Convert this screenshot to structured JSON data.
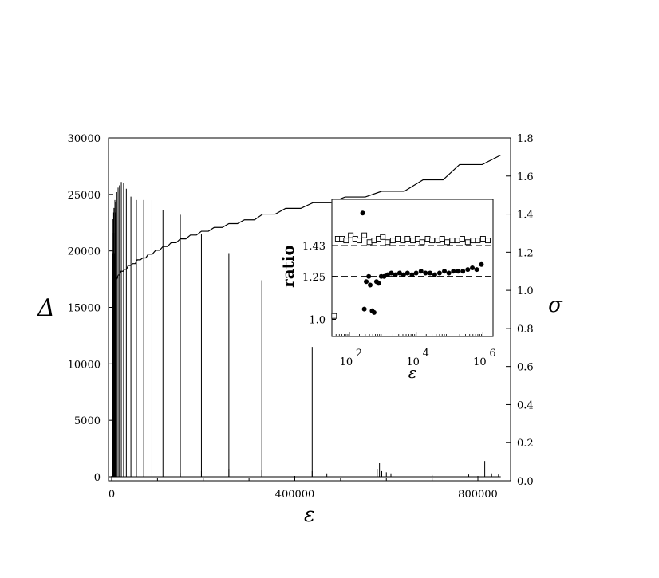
{
  "chart_data": [
    {
      "type": "line",
      "xlabel": "ε",
      "ylabel": "Δ",
      "y2label": "σ",
      "xlim": [
        0,
        900000
      ],
      "ylim": [
        0,
        30000
      ],
      "y2lim": [
        0,
        1.8
      ],
      "x_ticks": [
        0,
        400000,
        800000
      ],
      "x_tick_labels": [
        "0",
        "400000",
        "800000"
      ],
      "y_ticks": [
        0,
        5000,
        10000,
        15000,
        20000,
        25000,
        30000
      ],
      "y_tick_labels": [
        "0",
        "5000",
        "10000",
        "15000",
        "20000",
        "25000",
        "30000"
      ],
      "y2_ticks": [
        0,
        0.2,
        0.4,
        0.6,
        0.8,
        1.0,
        1.2,
        1.4,
        1.6,
        1.8
      ],
      "y2_tick_labels": [
        "0.0",
        "0.2",
        "0.4",
        "0.6",
        "0.8",
        "1.0",
        "1.2",
        "1.4",
        "1.6",
        "1.8"
      ],
      "grid": false,
      "series": [
        {
          "axis": "left",
          "style": "spikes",
          "x": [
            3000,
            5000,
            7000,
            9000,
            11000,
            14000,
            17000,
            21000,
            26000,
            32000,
            42000,
            54000,
            70000,
            88000,
            112000,
            150000,
            196000,
            256000,
            328000,
            438000,
            585000,
            815000
          ],
          "values": [
            22800,
            23800,
            24500,
            24300,
            25200,
            25600,
            25800,
            26100,
            26000,
            25500,
            24800,
            24500,
            24500,
            24500,
            23600,
            23200,
            21500,
            19800,
            17400,
            11500,
            1200,
            1400
          ]
        },
        {
          "axis": "right",
          "style": "staircase",
          "x": [
            0,
            4000,
            8000,
            14000,
            20000,
            28000,
            36000,
            46000,
            56000,
            68000,
            80000,
            96000,
            112000,
            130000,
            150000,
            172000,
            196000,
            224000,
            256000,
            290000,
            330000,
            380000,
            440000,
            510000,
            590000,
            680000,
            760000,
            850000
          ],
          "values": [
            0.95,
            1.02,
            1.06,
            1.08,
            1.1,
            1.11,
            1.13,
            1.14,
            1.16,
            1.17,
            1.19,
            1.21,
            1.23,
            1.25,
            1.27,
            1.29,
            1.31,
            1.33,
            1.35,
            1.37,
            1.4,
            1.43,
            1.46,
            1.49,
            1.52,
            1.58,
            1.66,
            1.71
          ]
        }
      ]
    },
    {
      "type": "scatter",
      "role": "inset",
      "xlabel": "ε",
      "ylabel": "ratio",
      "xscale": "log",
      "xlim": [
        30,
        2000000
      ],
      "ylim": [
        0.9,
        1.7
      ],
      "x_tick_labels": [
        "10",
        "10",
        "10"
      ],
      "x_tick_exponents": [
        "2",
        "4",
        "6"
      ],
      "x_ticks": [
        100,
        10000,
        1000000
      ],
      "y_ticks": [
        1.0,
        1.25,
        1.43
      ],
      "y_tick_labels": [
        "1.0",
        "1.25",
        "1.43"
      ],
      "reference_lines": [
        1.25,
        1.43
      ],
      "series": [
        {
          "marker": "open-square",
          "x": [
            35,
            45,
            60,
            80,
            110,
            150,
            200,
            280,
            400,
            550,
            750,
            1000,
            1400,
            2000,
            2800,
            4000,
            5500,
            8000,
            11000,
            15000,
            22000,
            30000,
            45000,
            60000,
            85000,
            120000,
            170000,
            240000,
            350000,
            500000,
            700000,
            1000000,
            1400000
          ],
          "values": [
            1.02,
            1.47,
            1.47,
            1.46,
            1.49,
            1.47,
            1.46,
            1.49,
            1.45,
            1.46,
            1.47,
            1.48,
            1.45,
            1.46,
            1.47,
            1.46,
            1.47,
            1.46,
            1.47,
            1.45,
            1.47,
            1.46,
            1.46,
            1.47,
            1.45,
            1.46,
            1.46,
            1.47,
            1.45,
            1.46,
            1.46,
            1.47,
            1.46
          ]
        },
        {
          "marker": "filled-circle",
          "x": [
            250,
            280,
            320,
            380,
            420,
            480,
            550,
            650,
            750,
            900,
            1100,
            1400,
            1800,
            2400,
            3200,
            4200,
            5500,
            7500,
            10000,
            14000,
            19000,
            26000,
            36000,
            50000,
            70000,
            95000,
            130000,
            180000,
            250000,
            350000,
            480000,
            650000,
            900000
          ],
          "values": [
            1.62,
            1.06,
            1.22,
            1.25,
            1.2,
            1.05,
            1.04,
            1.22,
            1.21,
            1.25,
            1.25,
            1.26,
            1.27,
            1.26,
            1.27,
            1.26,
            1.27,
            1.26,
            1.27,
            1.28,
            1.27,
            1.27,
            1.26,
            1.27,
            1.28,
            1.27,
            1.28,
            1.28,
            1.28,
            1.29,
            1.3,
            1.29,
            1.32
          ]
        }
      ]
    }
  ]
}
